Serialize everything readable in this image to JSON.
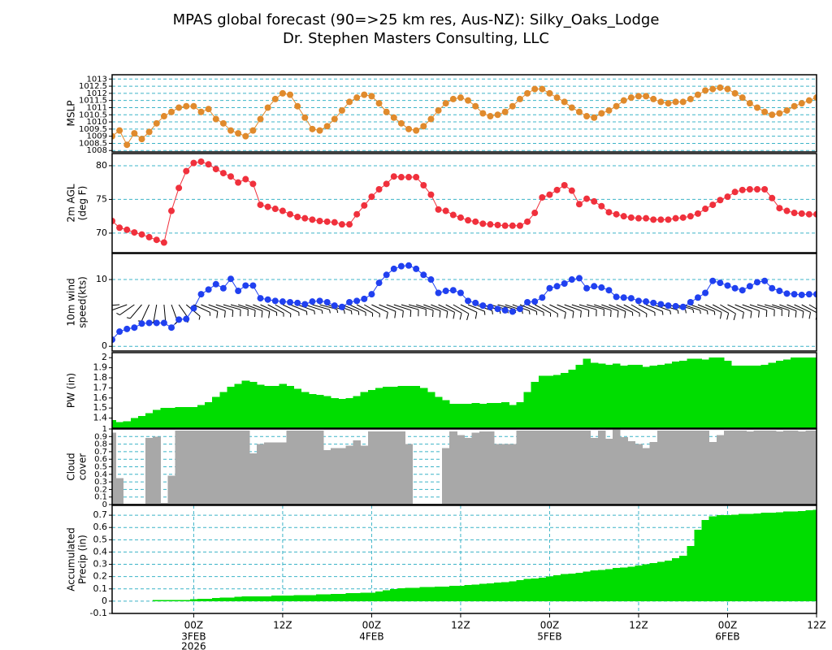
{
  "title": "MPAS global forecast (90=>25 km res, Aus-NZ): Silky_Oaks_Lodge",
  "subtitle": "Dr. Stephen Masters Consulting, LLC",
  "chart_data": [
    {
      "type": "line",
      "ylabel": [
        "MSLP"
      ],
      "color": "#e08a2c",
      "markers": true,
      "grid": true,
      "xlim": [
        -11,
        84
      ],
      "ylim": [
        1007.9,
        1013.3
      ],
      "yticks": [
        1008,
        1008.5,
        1009,
        1009.5,
        1010,
        1010.5,
        1011,
        1011.5,
        1012,
        1012.5,
        1013
      ],
      "x": [
        -11,
        -10,
        -9,
        -8,
        -7,
        -6,
        -5,
        -4,
        -3,
        -2,
        -1,
        0,
        1,
        2,
        3,
        4,
        5,
        6,
        7,
        8,
        9,
        10,
        11,
        12,
        13,
        14,
        15,
        16,
        17,
        18,
        19,
        20,
        21,
        22,
        23,
        24,
        25,
        26,
        27,
        28,
        29,
        30,
        31,
        32,
        33,
        34,
        35,
        36,
        37,
        38,
        39,
        40,
        41,
        42,
        43,
        44,
        45,
        46,
        47,
        48,
        49,
        50,
        51,
        52,
        53,
        54,
        55,
        56,
        57,
        58,
        59,
        60,
        61,
        62,
        63,
        64,
        65,
        66,
        67,
        68,
        69,
        70,
        71,
        72,
        73,
        74,
        75,
        76,
        77,
        78,
        79,
        80,
        81,
        82,
        83,
        84
      ],
      "values": [
        1009.0,
        1009.4,
        1008.4,
        1009.2,
        1008.8,
        1009.3,
        1009.9,
        1010.4,
        1010.7,
        1011.0,
        1011.1,
        1011.1,
        1010.7,
        1010.9,
        1010.2,
        1009.9,
        1009.4,
        1009.2,
        1009.0,
        1009.4,
        1010.2,
        1011.0,
        1011.6,
        1012.0,
        1011.9,
        1011.1,
        1010.3,
        1009.5,
        1009.4,
        1009.7,
        1010.2,
        1010.8,
        1011.4,
        1011.7,
        1011.9,
        1011.8,
        1011.3,
        1010.7,
        1010.3,
        1009.9,
        1009.5,
        1009.4,
        1009.7,
        1010.2,
        1010.8,
        1011.3,
        1011.6,
        1011.7,
        1011.5,
        1011.1,
        1010.6,
        1010.4,
        1010.5,
        1010.7,
        1011.1,
        1011.6,
        1012.0,
        1012.3,
        1012.3,
        1012.0,
        1011.7,
        1011.4,
        1011.0,
        1010.7,
        1010.4,
        1010.3,
        1010.6,
        1010.8,
        1011.1,
        1011.5,
        1011.7,
        1011.8,
        1011.8,
        1011.6,
        1011.4,
        1011.3,
        1011.4,
        1011.4,
        1011.6,
        1011.9,
        1012.2,
        1012.3,
        1012.4,
        1012.3,
        1012.0,
        1011.7,
        1011.3,
        1011.0,
        1010.7,
        1010.5,
        1010.6,
        1010.8,
        1011.1,
        1011.3,
        1011.5,
        1011.7
      ]
    },
    {
      "type": "line",
      "ylabel": [
        "2m AGL",
        "(deg F)"
      ],
      "color": "#f0303c",
      "markers": true,
      "grid": true,
      "xlim": [
        -11,
        84
      ],
      "ylim": [
        67.1,
        81.8
      ],
      "yticks": [
        70,
        75,
        80
      ],
      "x": [
        -11,
        -10,
        -9,
        -8,
        -7,
        -6,
        -5,
        -4,
        -3,
        -2,
        -1,
        0,
        1,
        2,
        3,
        4,
        5,
        6,
        7,
        8,
        9,
        10,
        11,
        12,
        13,
        14,
        15,
        16,
        17,
        18,
        19,
        20,
        21,
        22,
        23,
        24,
        25,
        26,
        27,
        28,
        29,
        30,
        31,
        32,
        33,
        34,
        35,
        36,
        37,
        38,
        39,
        40,
        41,
        42,
        43,
        44,
        45,
        46,
        47,
        48,
        49,
        50,
        51,
        52,
        53,
        54,
        55,
        56,
        57,
        58,
        59,
        60,
        61,
        62,
        63,
        64,
        65,
        66,
        67,
        68,
        69,
        70,
        71,
        72,
        73,
        74,
        75,
        76,
        77,
        78,
        79,
        80,
        81,
        82,
        83,
        84
      ],
      "values": [
        71.8,
        70.8,
        70.5,
        70.1,
        69.8,
        69.4,
        69.0,
        68.6,
        73.3,
        76.7,
        79.2,
        80.4,
        80.6,
        80.2,
        79.5,
        78.9,
        78.4,
        77.5,
        78.0,
        77.3,
        74.2,
        73.9,
        73.6,
        73.3,
        72.8,
        72.4,
        72.2,
        72.0,
        71.8,
        71.7,
        71.6,
        71.3,
        71.3,
        72.8,
        74.1,
        75.4,
        76.5,
        77.3,
        78.4,
        78.3,
        78.3,
        78.3,
        77.1,
        75.7,
        73.5,
        73.3,
        72.7,
        72.3,
        71.9,
        71.7,
        71.4,
        71.3,
        71.2,
        71.1,
        71.1,
        71.1,
        71.7,
        73.0,
        75.3,
        75.7,
        76.4,
        77.1,
        76.3,
        74.3,
        75.1,
        74.7,
        74.0,
        73.1,
        72.8,
        72.5,
        72.3,
        72.2,
        72.2,
        72.0,
        72.0,
        72.0,
        72.2,
        72.3,
        72.5,
        72.9,
        73.6,
        74.2,
        74.9,
        75.4,
        76.1,
        76.4,
        76.5,
        76.5,
        76.5,
        75.2,
        73.7,
        73.3,
        73.0,
        72.9,
        72.8,
        72.8
      ]
    },
    {
      "type": "line",
      "ylabel": [
        "10m wind",
        "speed(kts)"
      ],
      "color": "#2040f0",
      "markers": true,
      "grid": true,
      "xlim": [
        -11,
        84
      ],
      "ylim": [
        -0.7,
        13.9
      ],
      "yticks": [
        0,
        10
      ],
      "x": [
        -11,
        -10,
        -9,
        -8,
        -7,
        -6,
        -5,
        -4,
        -3,
        -2,
        -1,
        0,
        1,
        2,
        3,
        4,
        5,
        6,
        7,
        8,
        9,
        10,
        11,
        12,
        13,
        14,
        15,
        16,
        17,
        18,
        19,
        20,
        21,
        22,
        23,
        24,
        25,
        26,
        27,
        28,
        29,
        30,
        31,
        32,
        33,
        34,
        35,
        36,
        37,
        38,
        39,
        40,
        41,
        42,
        43,
        44,
        45,
        46,
        47,
        48,
        49,
        50,
        51,
        52,
        53,
        54,
        55,
        56,
        57,
        58,
        59,
        60,
        61,
        62,
        63,
        64,
        65,
        66,
        67,
        68,
        69,
        70,
        71,
        72,
        73,
        74,
        75,
        76,
        77,
        78,
        79,
        80,
        81,
        82,
        83,
        84
      ],
      "values": [
        1.0,
        2.2,
        2.6,
        2.8,
        3.4,
        3.5,
        3.5,
        3.5,
        2.8,
        4.0,
        4.1,
        5.7,
        7.8,
        8.5,
        9.3,
        8.7,
        10.1,
        8.3,
        9.1,
        9.1,
        7.2,
        7.0,
        6.8,
        6.7,
        6.6,
        6.5,
        6.3,
        6.7,
        6.8,
        6.6,
        6.1,
        5.9,
        6.6,
        6.8,
        7.1,
        7.8,
        9.5,
        10.7,
        11.6,
        12.0,
        12.1,
        11.6,
        10.7,
        10.0,
        8.0,
        8.3,
        8.4,
        8.0,
        6.8,
        6.5,
        6.1,
        5.9,
        5.6,
        5.4,
        5.2,
        5.6,
        6.6,
        6.7,
        7.3,
        8.7,
        9.0,
        9.4,
        10.0,
        10.2,
        8.7,
        9.0,
        8.8,
        8.4,
        7.4,
        7.3,
        7.2,
        6.8,
        6.7,
        6.5,
        6.3,
        6.1,
        6.0,
        5.9,
        6.6,
        7.3,
        8.0,
        9.8,
        9.5,
        9.1,
        8.7,
        8.4,
        9.0,
        9.6,
        9.8,
        8.7,
        8.3,
        7.9,
        7.8,
        7.7,
        7.8,
        7.8
      ],
      "directions": [
        280,
        265,
        250,
        235,
        220,
        205,
        190,
        175,
        160,
        145,
        130,
        115,
        112,
        110,
        108,
        106,
        105,
        108,
        110,
        112,
        115,
        118,
        120,
        115,
        112,
        110,
        108,
        106,
        105,
        108,
        110,
        112,
        115,
        118,
        120,
        115,
        112,
        110,
        108,
        106,
        105,
        108,
        110,
        112,
        115,
        118,
        120,
        115,
        112,
        110,
        108,
        106,
        105,
        108,
        110,
        112,
        115,
        118,
        120,
        115,
        112,
        110,
        108,
        106,
        105,
        108,
        110,
        112,
        115,
        118,
        120,
        115,
        112,
        110,
        108,
        106,
        105,
        108,
        110,
        112,
        115,
        118,
        120,
        115,
        112,
        110,
        108,
        106,
        105,
        108,
        110,
        112,
        115,
        118,
        120,
        115
      ]
    },
    {
      "type": "bar",
      "ylabel": [
        "PW (in)"
      ],
      "color": "#00dd00",
      "grid": false,
      "xlim": [
        -11,
        84
      ],
      "ylim": [
        1.3,
        2.05
      ],
      "yticks": [
        1.4,
        1.5,
        1.6,
        1.7,
        1.8,
        1.9,
        2
      ],
      "x": [
        -11,
        -10,
        -9,
        -8,
        -7,
        -6,
        -5,
        -4,
        -3,
        -2,
        -1,
        0,
        1,
        2,
        3,
        4,
        5,
        6,
        7,
        8,
        9,
        10,
        11,
        12,
        13,
        14,
        15,
        16,
        17,
        18,
        19,
        20,
        21,
        22,
        23,
        24,
        25,
        26,
        27,
        28,
        29,
        30,
        31,
        32,
        33,
        34,
        35,
        36,
        37,
        38,
        39,
        40,
        41,
        42,
        43,
        44,
        45,
        46,
        47,
        48,
        49,
        50,
        51,
        52,
        53,
        54,
        55,
        56,
        57,
        58,
        59,
        60,
        61,
        62,
        63,
        64,
        65,
        66,
        67,
        68,
        69,
        70,
        71,
        72,
        73,
        74,
        75,
        76,
        77,
        78,
        79,
        80,
        81,
        82,
        83,
        84
      ],
      "values": [
        1.38,
        1.36,
        1.37,
        1.4,
        1.42,
        1.45,
        1.48,
        1.5,
        1.5,
        1.51,
        1.51,
        1.51,
        1.53,
        1.56,
        1.61,
        1.66,
        1.71,
        1.74,
        1.77,
        1.76,
        1.73,
        1.72,
        1.72,
        1.74,
        1.72,
        1.69,
        1.66,
        1.64,
        1.63,
        1.62,
        1.6,
        1.59,
        1.6,
        1.62,
        1.66,
        1.68,
        1.7,
        1.71,
        1.71,
        1.72,
        1.72,
        1.72,
        1.7,
        1.66,
        1.61,
        1.58,
        1.54,
        1.54,
        1.54,
        1.55,
        1.54,
        1.55,
        1.55,
        1.56,
        1.53,
        1.56,
        1.66,
        1.76,
        1.82,
        1.82,
        1.83,
        1.85,
        1.88,
        1.93,
        1.99,
        1.95,
        1.94,
        1.93,
        1.94,
        1.92,
        1.93,
        1.93,
        1.91,
        1.92,
        1.93,
        1.94,
        1.96,
        1.97,
        1.99,
        1.99,
        1.98,
        2.0,
        2.0,
        1.97,
        1.92,
        1.92,
        1.92,
        1.92,
        1.93,
        1.95,
        1.97,
        1.98,
        2.0,
        2.0,
        2.0,
        2.0
      ]
    },
    {
      "type": "bar",
      "ylabel": [
        "Cloud",
        "cover"
      ],
      "color": "#a8a8a8",
      "grid": true,
      "xlim": [
        -11,
        84
      ],
      "ylim": [
        0,
        1
      ],
      "yticks": [
        0,
        0.1,
        0.2,
        0.3,
        0.4,
        0.5,
        0.6,
        0.7,
        0.8,
        0.9,
        1
      ],
      "x": [
        -11,
        -10,
        -9,
        -8,
        -7,
        -6,
        -5,
        -4,
        -3,
        -2,
        -1,
        0,
        1,
        2,
        3,
        4,
        5,
        6,
        7,
        8,
        9,
        10,
        11,
        12,
        13,
        14,
        15,
        16,
        17,
        18,
        19,
        20,
        21,
        22,
        23,
        24,
        25,
        26,
        27,
        28,
        29,
        30,
        31,
        32,
        33,
        34,
        35,
        36,
        37,
        38,
        39,
        40,
        41,
        42,
        43,
        44,
        45,
        46,
        47,
        48,
        49,
        50,
        51,
        52,
        53,
        54,
        55,
        56,
        57,
        58,
        59,
        60,
        61,
        62,
        63,
        64,
        65,
        66,
        67,
        68,
        69,
        70,
        71,
        72,
        73,
        74,
        75,
        76,
        77,
        78,
        79,
        80,
        81,
        82,
        83,
        84
      ],
      "values": [
        0.95,
        0.35,
        0.01,
        0.01,
        0.01,
        0.88,
        0.9,
        0.02,
        0.38,
        0.98,
        0.98,
        0.98,
        0.98,
        0.98,
        0.98,
        0.98,
        0.98,
        0.98,
        0.98,
        0.68,
        0.8,
        0.82,
        0.82,
        0.82,
        0.98,
        0.98,
        0.98,
        0.98,
        0.98,
        0.72,
        0.75,
        0.75,
        0.78,
        0.85,
        0.78,
        0.97,
        0.97,
        0.97,
        0.97,
        0.97,
        0.8,
        0.01,
        0.01,
        0.01,
        0.01,
        0.75,
        0.97,
        0.92,
        0.88,
        0.95,
        0.97,
        0.97,
        0.8,
        0.8,
        0.8,
        0.98,
        0.98,
        0.98,
        0.98,
        0.98,
        0.98,
        0.98,
        0.98,
        0.98,
        0.98,
        0.88,
        0.98,
        0.87,
        0.99,
        0.89,
        0.84,
        0.8,
        0.75,
        0.83,
        0.98,
        0.98,
        0.98,
        0.98,
        0.98,
        0.98,
        0.98,
        0.83,
        0.92,
        0.98,
        0.98,
        0.98,
        0.97,
        0.98,
        0.98,
        0.98,
        0.97,
        0.98,
        0.98,
        0.97,
        0.98,
        0.98
      ]
    },
    {
      "type": "bar",
      "ylabel": [
        "Accumulated",
        "Precip (in)"
      ],
      "color": "#00dd00",
      "grid": true,
      "xgrid": true,
      "xlim": [
        -11,
        84
      ],
      "ylim": [
        -0.1,
        0.78
      ],
      "yticks": [
        -0.1,
        0,
        0.1,
        0.2,
        0.3,
        0.4,
        0.5,
        0.6,
        0.7
      ],
      "x": [
        -11,
        -10,
        -9,
        -8,
        -7,
        -6,
        -5,
        -4,
        -3,
        -2,
        -1,
        0,
        1,
        2,
        3,
        4,
        5,
        6,
        7,
        8,
        9,
        10,
        11,
        12,
        13,
        14,
        15,
        16,
        17,
        18,
        19,
        20,
        21,
        22,
        23,
        24,
        25,
        26,
        27,
        28,
        29,
        30,
        31,
        32,
        33,
        34,
        35,
        36,
        37,
        38,
        39,
        40,
        41,
        42,
        43,
        44,
        45,
        46,
        47,
        48,
        49,
        50,
        51,
        52,
        53,
        54,
        55,
        56,
        57,
        58,
        59,
        60,
        61,
        62,
        63,
        64,
        65,
        66,
        67,
        68,
        69,
        70,
        71,
        72,
        73,
        74,
        75,
        76,
        77,
        78,
        79,
        80,
        81,
        82,
        83,
        84
      ],
      "values": [
        0,
        0,
        0,
        0,
        0,
        0,
        0.01,
        0.01,
        0.01,
        0.01,
        0.01,
        0.015,
        0.02,
        0.02,
        0.025,
        0.03,
        0.03,
        0.035,
        0.04,
        0.04,
        0.04,
        0.04,
        0.045,
        0.045,
        0.045,
        0.05,
        0.05,
        0.05,
        0.055,
        0.055,
        0.06,
        0.06,
        0.065,
        0.065,
        0.07,
        0.07,
        0.08,
        0.09,
        0.1,
        0.105,
        0.11,
        0.11,
        0.115,
        0.115,
        0.12,
        0.12,
        0.125,
        0.125,
        0.13,
        0.135,
        0.14,
        0.145,
        0.15,
        0.155,
        0.16,
        0.17,
        0.18,
        0.185,
        0.19,
        0.2,
        0.21,
        0.22,
        0.225,
        0.23,
        0.24,
        0.25,
        0.255,
        0.26,
        0.27,
        0.275,
        0.28,
        0.29,
        0.3,
        0.31,
        0.32,
        0.33,
        0.35,
        0.37,
        0.45,
        0.58,
        0.66,
        0.69,
        0.7,
        0.7,
        0.705,
        0.71,
        0.71,
        0.715,
        0.72,
        0.72,
        0.725,
        0.73,
        0.73,
        0.735,
        0.74,
        0.745
      ],
      "xticks": [
        {
          "value": 0,
          "label": "00Z"
        },
        {
          "value": 12,
          "label": "12Z"
        },
        {
          "value": 24,
          "label": "00Z"
        },
        {
          "value": 36,
          "label": "12Z"
        },
        {
          "value": 48,
          "label": "00Z"
        },
        {
          "value": 60,
          "label": "12Z"
        },
        {
          "value": 72,
          "label": "00Z"
        },
        {
          "value": 84,
          "label": "12Z"
        }
      ],
      "date_labels": [
        {
          "value": 0,
          "label": "3FEB"
        },
        {
          "value": 24,
          "label": "4FEB"
        },
        {
          "value": 48,
          "label": "5FEB"
        },
        {
          "value": 72,
          "label": "6FEB"
        }
      ],
      "year_labels": [
        {
          "value": 0,
          "label": "2026"
        }
      ]
    }
  ]
}
